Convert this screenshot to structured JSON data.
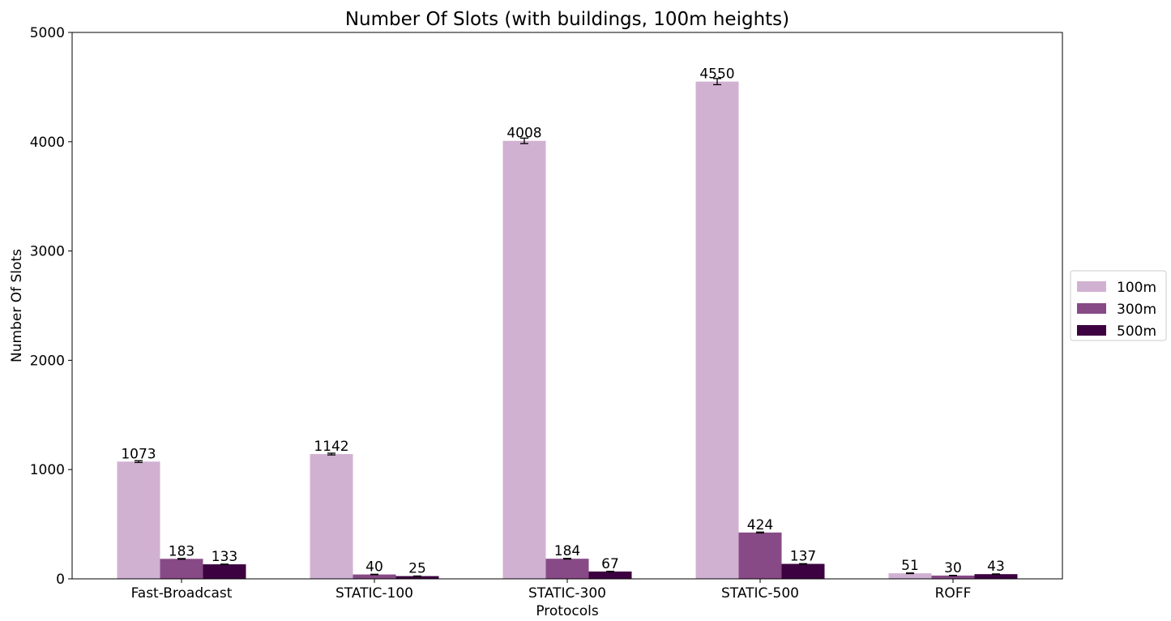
{
  "chart_data": {
    "type": "bar",
    "title": "Number Of Slots (with buildings, 100m heights)",
    "xlabel": "Protocols",
    "ylabel": "Number Of Slots",
    "ylim": [
      0,
      5000
    ],
    "yticks": [
      0,
      1000,
      2000,
      3000,
      4000,
      5000
    ],
    "categories": [
      "Fast-Broadcast",
      "STATIC-100",
      "STATIC-300",
      "STATIC-500",
      "ROFF"
    ],
    "series": [
      {
        "name": "100m",
        "color": "#d1b1d1",
        "values": [
          1073,
          1142,
          4008,
          4550,
          51
        ],
        "errors": [
          8,
          8,
          25,
          28,
          3
        ]
      },
      {
        "name": "300m",
        "color": "#874a87",
        "values": [
          183,
          40,
          184,
          424,
          30
        ],
        "errors": [
          3,
          2,
          3,
          4,
          2
        ]
      },
      {
        "name": "500m",
        "color": "#3d0040",
        "values": [
          133,
          25,
          67,
          137,
          43
        ],
        "errors": [
          2,
          1,
          2,
          2,
          2
        ]
      }
    ],
    "grid": false,
    "legend": "center-right outside"
  }
}
